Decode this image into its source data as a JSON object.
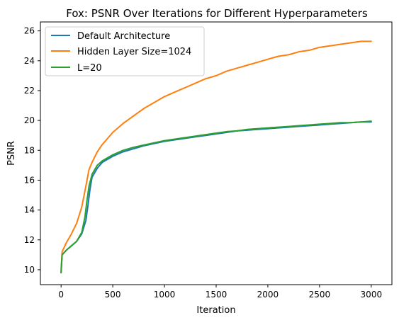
{
  "chart_data": {
    "type": "line",
    "title": "Fox: PSNR Over Iterations for Different Hyperparameters",
    "xlabel": "Iteration",
    "ylabel": "PSNR",
    "xlim": [
      -200,
      3200
    ],
    "ylim": [
      9.0,
      26.6
    ],
    "x_ticks": [
      0,
      500,
      1000,
      1500,
      2000,
      2500,
      3000
    ],
    "y_ticks": [
      10,
      12,
      14,
      16,
      18,
      20,
      22,
      24,
      26
    ],
    "grid": false,
    "legend_position": "top-left",
    "series": [
      {
        "name": "Default Architecture",
        "color": "#1f77b4",
        "x": [
          0,
          10,
          50,
          100,
          150,
          200,
          240,
          260,
          280,
          300,
          350,
          400,
          500,
          600,
          700,
          800,
          900,
          1000,
          1100,
          1200,
          1300,
          1400,
          1500,
          1600,
          1700,
          1800,
          1900,
          2000,
          2100,
          2200,
          2300,
          2400,
          2500,
          2600,
          2700,
          2800,
          2900,
          3000
        ],
        "y": [
          9.8,
          11.0,
          11.3,
          11.6,
          11.9,
          12.4,
          13.3,
          14.3,
          15.4,
          16.2,
          16.8,
          17.2,
          17.6,
          17.9,
          18.1,
          18.3,
          18.45,
          18.6,
          18.7,
          18.8,
          18.9,
          19.0,
          19.1,
          19.2,
          19.3,
          19.35,
          19.4,
          19.45,
          19.5,
          19.55,
          19.6,
          19.65,
          19.7,
          19.75,
          19.8,
          19.85,
          19.9,
          19.9
        ]
      },
      {
        "name": "Hidden Layer Size=1024",
        "color": "#ff7f0e",
        "x": [
          0,
          10,
          50,
          100,
          150,
          200,
          240,
          270,
          300,
          350,
          400,
          500,
          600,
          700,
          800,
          900,
          1000,
          1100,
          1200,
          1300,
          1400,
          1500,
          1600,
          1700,
          1800,
          1900,
          2000,
          2100,
          2200,
          2300,
          2400,
          2500,
          2600,
          2700,
          2800,
          2900,
          3000
        ],
        "y": [
          10.0,
          11.2,
          11.8,
          12.4,
          13.1,
          14.2,
          15.6,
          16.7,
          17.2,
          17.9,
          18.4,
          19.2,
          19.8,
          20.3,
          20.8,
          21.2,
          21.6,
          21.9,
          22.2,
          22.5,
          22.8,
          23.0,
          23.3,
          23.5,
          23.7,
          23.9,
          24.1,
          24.3,
          24.4,
          24.6,
          24.7,
          24.9,
          25.0,
          25.1,
          25.2,
          25.3,
          25.3
        ]
      },
      {
        "name": "L=20",
        "color": "#2ca02c",
        "x": [
          0,
          10,
          50,
          100,
          150,
          200,
          230,
          250,
          270,
          300,
          350,
          400,
          500,
          600,
          700,
          800,
          900,
          1000,
          1100,
          1200,
          1300,
          1400,
          1500,
          1600,
          1700,
          1800,
          1900,
          2000,
          2100,
          2200,
          2300,
          2400,
          2500,
          2600,
          2700,
          2800,
          2900,
          3000
        ],
        "y": [
          9.8,
          11.0,
          11.3,
          11.6,
          11.9,
          12.5,
          13.5,
          14.6,
          15.6,
          16.4,
          17.0,
          17.3,
          17.7,
          18.0,
          18.2,
          18.35,
          18.5,
          18.65,
          18.75,
          18.85,
          18.95,
          19.05,
          19.15,
          19.25,
          19.3,
          19.4,
          19.45,
          19.5,
          19.55,
          19.6,
          19.65,
          19.7,
          19.75,
          19.8,
          19.85,
          19.85,
          19.9,
          19.95
        ]
      }
    ]
  }
}
